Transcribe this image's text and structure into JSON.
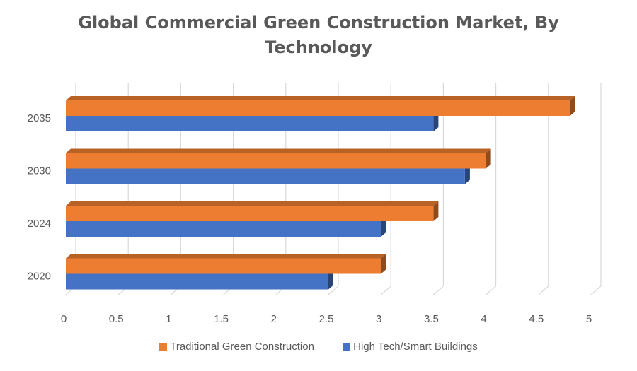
{
  "chart_data": {
    "type": "bar",
    "orientation": "horizontal",
    "style": "3d",
    "title": "Global Commercial Green Construction Market, By Technology",
    "title_lines": [
      "Global Commercial Green Construction Market, By",
      "Technology"
    ],
    "categories": [
      "2020",
      "2024",
      "2030",
      "2035"
    ],
    "series": [
      {
        "name": "Traditional Green Construction",
        "values": [
          3.0,
          3.5,
          4.0,
          4.8
        ],
        "color": "#ED7D31"
      },
      {
        "name": "High Tech/Smart Buildings",
        "values": [
          2.5,
          3.0,
          3.8,
          3.5
        ],
        "color": "#4472C4"
      }
    ],
    "xlim": [
      0,
      5
    ],
    "x_ticks": [
      "0",
      "0.5",
      "1",
      "1.5",
      "2",
      "2.5",
      "3",
      "3.5",
      "4",
      "4.5",
      "5"
    ],
    "grid": true,
    "legend_position": "bottom"
  }
}
